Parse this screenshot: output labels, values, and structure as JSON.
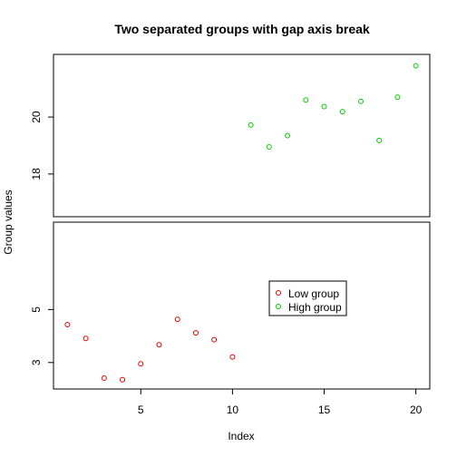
{
  "chart_data": {
    "type": "scatter",
    "title": "Two separated groups with gap axis break",
    "xlabel": "Index",
    "ylabel": "Group values",
    "xlim": [
      0.24,
      20.76
    ],
    "x_ticks": [
      5,
      10,
      15,
      20
    ],
    "axis_break": "gap",
    "legend_position": "center-right",
    "legend": [
      {
        "label": "Low group",
        "color": "#DF0000"
      },
      {
        "label": "High group",
        "color": "#00CD00"
      }
    ],
    "panels": [
      {
        "name": "upper",
        "ylim": [
          16.5,
          22.2
        ],
        "y_ticks": [
          18,
          20
        ],
        "series": "High group"
      },
      {
        "name": "lower",
        "ylim": [
          2.0,
          8.3
        ],
        "y_ticks": [
          3,
          5
        ],
        "series": "Low group"
      }
    ],
    "series": [
      {
        "name": "Low group",
        "color": "#DF0000",
        "x": [
          1,
          2,
          3,
          4,
          5,
          6,
          7,
          8,
          9,
          10
        ],
        "y": [
          4.43,
          3.91,
          2.41,
          2.35,
          2.95,
          3.67,
          4.63,
          4.12,
          3.86,
          3.21
        ]
      },
      {
        "name": "High group",
        "color": "#00CD00",
        "x": [
          11,
          12,
          13,
          14,
          15,
          16,
          17,
          18,
          19,
          20
        ],
        "y": [
          19.72,
          18.95,
          19.35,
          20.6,
          20.37,
          20.19,
          20.55,
          19.18,
          20.7,
          21.8
        ]
      }
    ]
  }
}
